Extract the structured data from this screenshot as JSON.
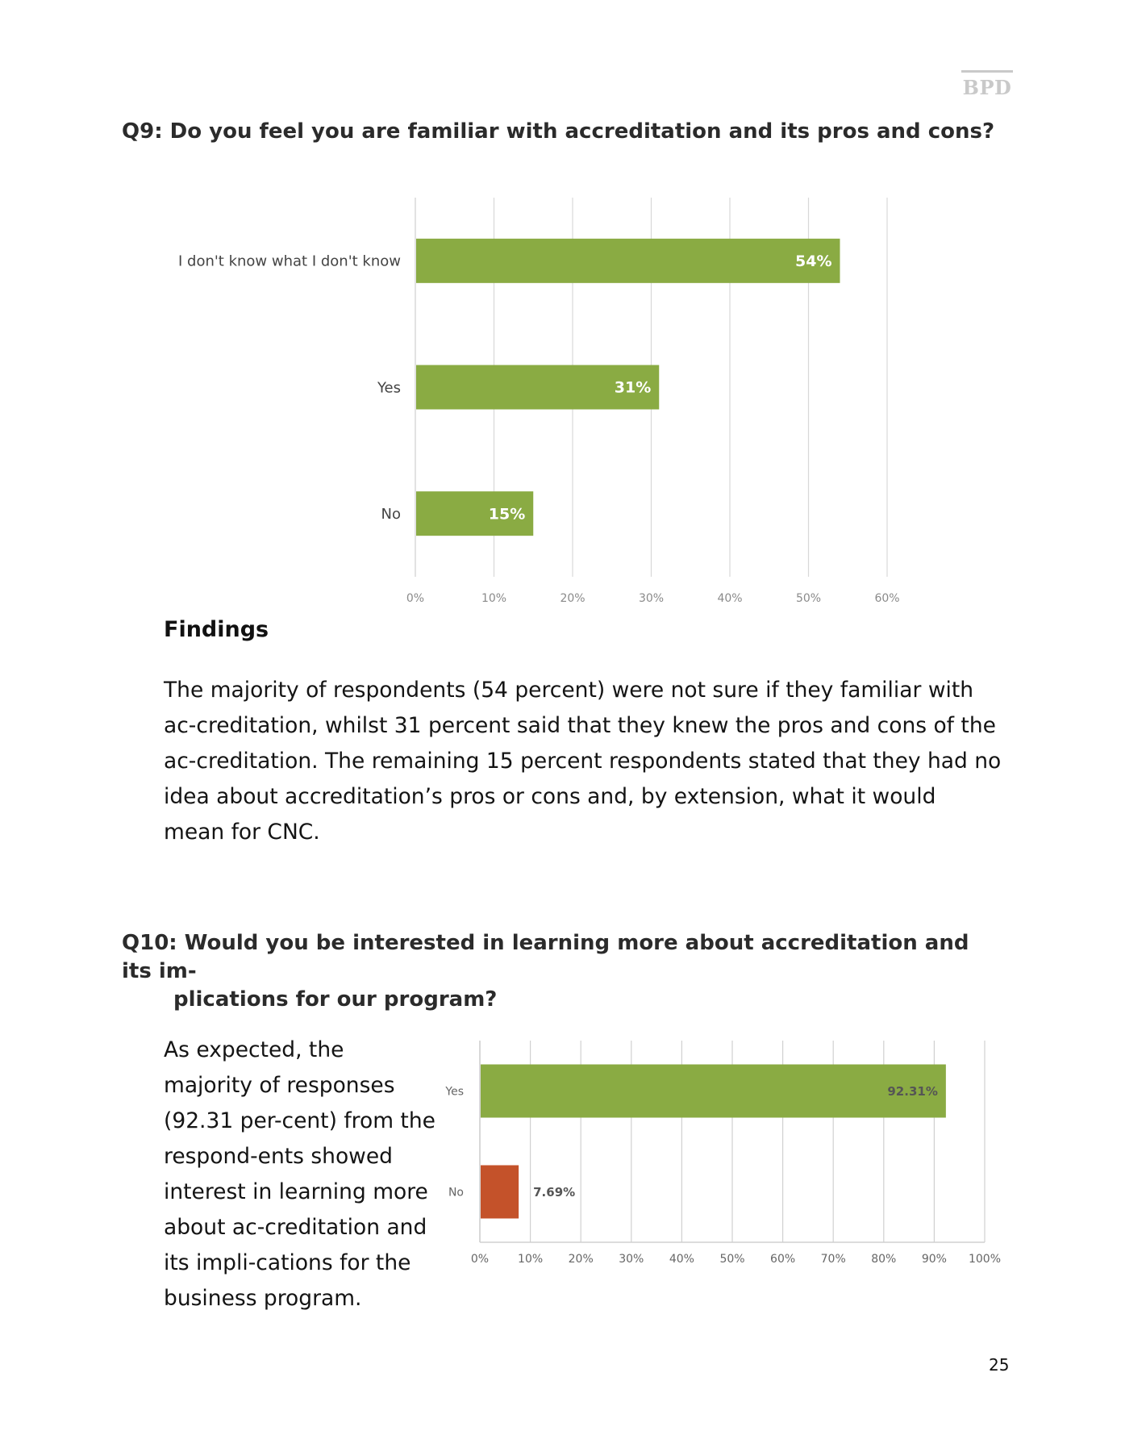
{
  "header": {
    "logo_text": "BPD"
  },
  "q9": {
    "title": "Q9: Do you feel you are familiar with accreditation and its pros and cons?",
    "findings_heading": "Findings",
    "findings_text": "The majority of respondents (54 percent) were not sure if they familiar with ac-creditation, whilst 31 percent said that they knew the pros and cons of the ac-creditation. The remaining 15 percent respondents stated that they had no idea about accreditation’s pros or cons and, by extension, what it would mean for CNC."
  },
  "q10": {
    "title_line1": "Q10: Would you be interested in learning more about accreditation and its im-",
    "title_line2": "plications for our program?",
    "text": "As expected, the majority of responses (92.31 per-cent) from the respond-ents showed interest in learning more about ac-creditation and its impli-cations for the business program."
  },
  "chart_data": [
    {
      "type": "bar",
      "orientation": "horizontal",
      "categories": [
        "I don't know what I don't know",
        "Yes",
        "No"
      ],
      "values": [
        54,
        31,
        15
      ],
      "data_labels": [
        "54%",
        "31%",
        "15%"
      ],
      "xlim": [
        0,
        60
      ],
      "x_ticks": [
        "0%",
        "10%",
        "20%",
        "30%",
        "40%",
        "50%",
        "60%"
      ],
      "grid": true,
      "bar_color": "#8aab43",
      "label_color": "#ffffff"
    },
    {
      "type": "bar",
      "orientation": "horizontal",
      "categories": [
        "Yes",
        "No"
      ],
      "values": [
        92.31,
        7.69
      ],
      "data_labels": [
        "92.31%",
        "7.69%"
      ],
      "colors": [
        "#8aab43",
        "#c4522a"
      ],
      "xlim": [
        0,
        100
      ],
      "x_ticks": [
        "0%",
        "10%",
        "20%",
        "30%",
        "40%",
        "50%",
        "60%",
        "70%",
        "80%",
        "90%",
        "100%"
      ],
      "grid": true,
      "label_color": "#555555"
    }
  ],
  "footer": {
    "page_number": "25"
  }
}
